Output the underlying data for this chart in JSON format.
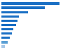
{
  "values": [
    86,
    65,
    40,
    26,
    24,
    22,
    18,
    16,
    13,
    9,
    5
  ],
  "colors": [
    "#1a6fc4",
    "#1a6fc4",
    "#1a6fc4",
    "#1a6fc4",
    "#1a6fc4",
    "#1a6fc4",
    "#1a6fc4",
    "#1a6fc4",
    "#1a6fc4",
    "#5a9fd4",
    "#a8c8e8"
  ],
  "background_color": "#ffffff",
  "grid_color": "#e0e0e0",
  "bar_height": 0.55,
  "xlim": [
    0,
    100
  ]
}
